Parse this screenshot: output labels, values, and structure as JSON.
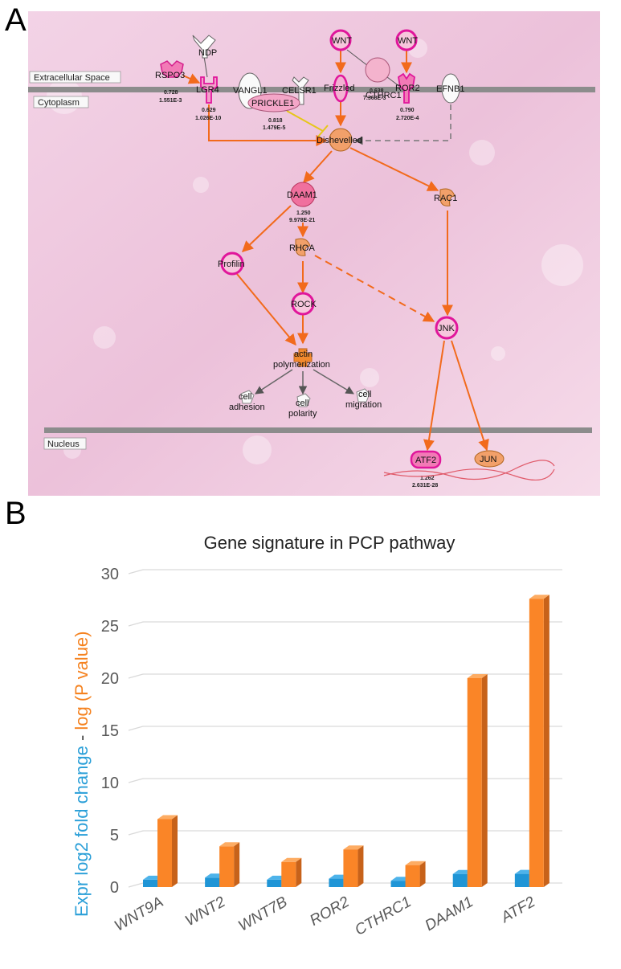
{
  "panel_a": {
    "letter": "A",
    "regions": {
      "extracellular": "Extracellular Space",
      "cytoplasm": "Cytoplasm",
      "nucleus": "Nucleus"
    },
    "nodes": {
      "ndp": "NDP",
      "rspo3": "RSPO3",
      "lgr4": "LGR4",
      "vangl1": "VANGL1",
      "prickle1": "PRICKLE1",
      "celsr1": "CELSR1",
      "wnt_a": "WNT",
      "frizzled": "Frizzled",
      "cthrc1": "CTHRC1",
      "wnt_b": "WNT",
      "ror2": "ROR2",
      "efnb1": "EFNB1",
      "dishevelled": "Dishevelled",
      "daam1": "DAAM1",
      "rac1": "RAC1",
      "profilin": "Profilin",
      "rhoa": "RHOA",
      "rock": "ROCK",
      "jnk": "JNK",
      "actin_1": "actin",
      "actin_2": "polymerization",
      "adhesion_1": "cell",
      "adhesion_2": "adhesion",
      "polarity_1": "cell",
      "polarity_2": "polarity",
      "migration_1": "cell",
      "migration_2": "migration",
      "atf2": "ATF2",
      "jun": "JUN"
    },
    "stats": {
      "rspo3_fc": "0.728",
      "rspo3_p": "1.551E-3",
      "lgr4_fc": "0.629",
      "lgr4_p": "1.026E-10",
      "prickle1_fc": "0.818",
      "prickle1_p": "1.479E-5",
      "cthrc1_fc": "0.638",
      "cthrc1_p": "7.368E-3",
      "ror2_fc": "0.790",
      "ror2_p": "2.720E-4",
      "daam1_fc": "1.250",
      "daam1_p": "9.978E-21",
      "atf2_fc": "1.262",
      "atf2_p": "2.631E-28"
    }
  },
  "panel_b": {
    "letter": "B"
  },
  "chart_data": {
    "type": "bar",
    "title": "Gene signature in PCP pathway",
    "ylabel_parts": [
      "Expr log2 fold change",
      " - ",
      "log (P value)"
    ],
    "categories": [
      "WNT9A",
      "WNT2",
      "WNT7B",
      "ROR2",
      "CTHRC1",
      "DAAM1",
      "ATF2"
    ],
    "series": [
      {
        "values": [
          0.7,
          0.9,
          0.7,
          0.8,
          0.6,
          1.25,
          1.26
        ],
        "color": "#1f95d6",
        "top": "#4db3ea",
        "side": "#1675a8"
      },
      {
        "values": [
          6.5,
          3.9,
          2.4,
          3.6,
          2.1,
          20.0,
          27.6
        ],
        "color": "#fa8527",
        "top": "#fdac63",
        "side": "#c7621a"
      }
    ],
    "ylim": [
      0,
      30
    ],
    "yticks": [
      0,
      5,
      10,
      15,
      20,
      25,
      30
    ],
    "grid": true,
    "colors": {
      "blue": "#2a9fd8",
      "orange": "#f5821f",
      "grid": "#d9d9d9"
    }
  }
}
